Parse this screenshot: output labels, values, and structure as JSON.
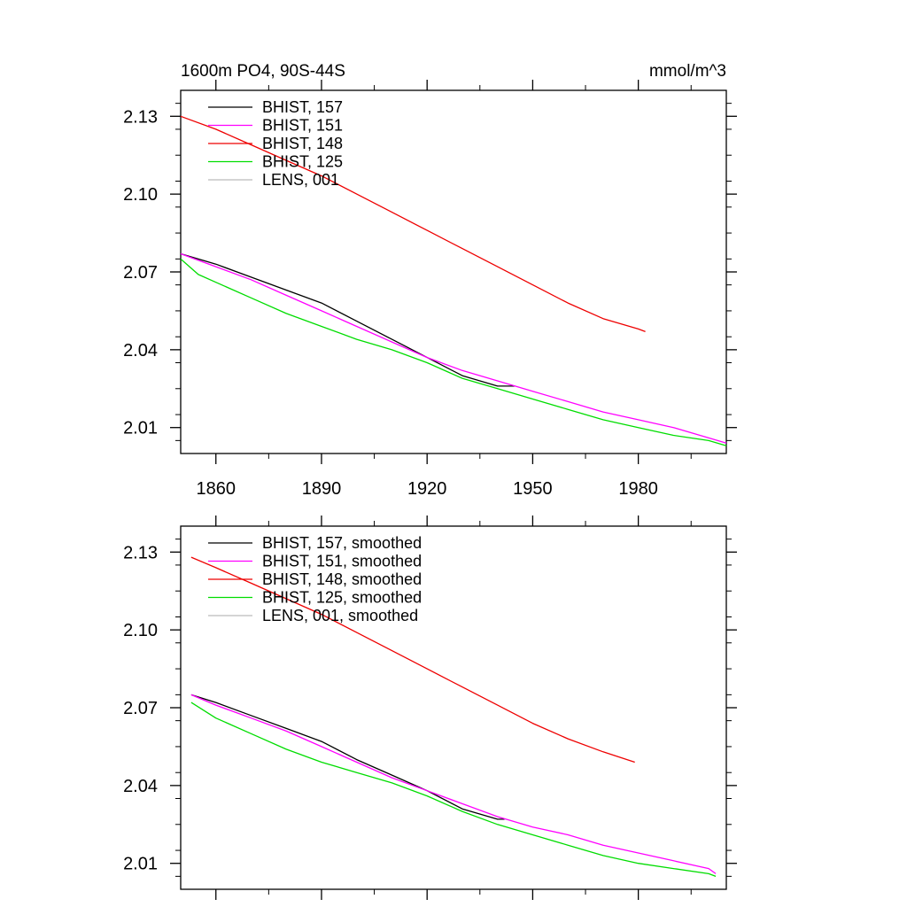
{
  "colors": {
    "black": "#000000",
    "magenta": "#ff00ff",
    "red": "#ee0000",
    "green": "#00dd00",
    "gray": "#bbbbbb"
  },
  "chart_data": [
    {
      "type": "line",
      "title": "1600m PO4, 90S-44S",
      "units": "mmol/m^3",
      "xlim": [
        1850,
        2005
      ],
      "ylim": [
        2.0,
        2.14
      ],
      "x_ticks": [
        "1860",
        "1890",
        "1920",
        "1950",
        "1980"
      ],
      "y_ticks": [
        "2.13",
        "2.10",
        "2.07",
        "2.04",
        "2.01"
      ],
      "legend_position": "top-left",
      "series": [
        {
          "name": "BHIST, 157",
          "color": "#000000",
          "x": [
            1850,
            1860,
            1870,
            1880,
            1890,
            1900,
            1910,
            1920,
            1930,
            1940,
            1945
          ],
          "y": [
            2.077,
            2.073,
            2.068,
            2.063,
            2.058,
            2.051,
            2.044,
            2.037,
            2.03,
            2.026,
            2.026
          ]
        },
        {
          "name": "BHIST, 151",
          "color": "#ff00ff",
          "x": [
            1850,
            1860,
            1870,
            1880,
            1890,
            1900,
            1910,
            1920,
            1930,
            1940,
            1950,
            1960,
            1970,
            1980,
            1990,
            2000,
            2005
          ],
          "y": [
            2.077,
            2.072,
            2.067,
            2.061,
            2.055,
            2.049,
            2.043,
            2.037,
            2.032,
            2.028,
            2.024,
            2.02,
            2.016,
            2.013,
            2.01,
            2.006,
            2.004
          ]
        },
        {
          "name": "BHIST, 148",
          "color": "#ee0000",
          "x": [
            1850,
            1860,
            1870,
            1880,
            1890,
            1900,
            1910,
            1920,
            1930,
            1940,
            1950,
            1960,
            1970,
            1980,
            1982
          ],
          "y": [
            2.13,
            2.125,
            2.119,
            2.113,
            2.107,
            2.1,
            2.093,
            2.086,
            2.079,
            2.072,
            2.065,
            2.058,
            2.052,
            2.048,
            2.047
          ]
        },
        {
          "name": "BHIST, 125",
          "color": "#00dd00",
          "x": [
            1850,
            1855,
            1860,
            1870,
            1880,
            1890,
            1900,
            1910,
            1920,
            1930,
            1940,
            1950,
            1960,
            1970,
            1980,
            1990,
            2000,
            2005
          ],
          "y": [
            2.075,
            2.069,
            2.066,
            2.06,
            2.054,
            2.049,
            2.044,
            2.04,
            2.035,
            2.029,
            2.025,
            2.021,
            2.017,
            2.013,
            2.01,
            2.007,
            2.005,
            2.003
          ]
        },
        {
          "name": "LENS, 001",
          "color": "#bbbbbb",
          "x": [],
          "y": []
        }
      ]
    },
    {
      "type": "line",
      "title": "",
      "units": "",
      "xlim": [
        1850,
        2005
      ],
      "ylim": [
        2.0,
        2.14
      ],
      "x_ticks": [],
      "y_ticks": [
        "2.13",
        "2.10",
        "2.07",
        "2.04",
        "2.01"
      ],
      "legend_position": "top-left",
      "series": [
        {
          "name": "BHIST, 157, smoothed",
          "color": "#000000",
          "x": [
            1853,
            1860,
            1870,
            1880,
            1890,
            1900,
            1910,
            1920,
            1930,
            1940,
            1942
          ],
          "y": [
            2.075,
            2.072,
            2.067,
            2.062,
            2.057,
            2.05,
            2.044,
            2.038,
            2.031,
            2.027,
            2.027
          ]
        },
        {
          "name": "BHIST, 151, smoothed",
          "color": "#ff00ff",
          "x": [
            1853,
            1860,
            1870,
            1880,
            1890,
            1900,
            1910,
            1920,
            1930,
            1940,
            1950,
            1960,
            1970,
            1980,
            1990,
            2000,
            2002
          ],
          "y": [
            2.075,
            2.071,
            2.066,
            2.061,
            2.055,
            2.049,
            2.043,
            2.038,
            2.033,
            2.028,
            2.024,
            2.021,
            2.017,
            2.014,
            2.011,
            2.008,
            2.006
          ]
        },
        {
          "name": "BHIST, 148, smoothed",
          "color": "#ee0000",
          "x": [
            1853,
            1860,
            1870,
            1880,
            1890,
            1900,
            1910,
            1920,
            1930,
            1940,
            1950,
            1960,
            1970,
            1979
          ],
          "y": [
            2.128,
            2.124,
            2.118,
            2.112,
            2.106,
            2.099,
            2.092,
            2.085,
            2.078,
            2.071,
            2.064,
            2.058,
            2.053,
            2.049
          ]
        },
        {
          "name": "BHIST, 125, smoothed",
          "color": "#00dd00",
          "x": [
            1853,
            1860,
            1870,
            1880,
            1890,
            1900,
            1910,
            1920,
            1930,
            1940,
            1950,
            1960,
            1970,
            1980,
            1990,
            2000,
            2002
          ],
          "y": [
            2.072,
            2.066,
            2.06,
            2.054,
            2.049,
            2.045,
            2.041,
            2.036,
            2.03,
            2.025,
            2.021,
            2.017,
            2.013,
            2.01,
            2.008,
            2.006,
            2.005
          ]
        },
        {
          "name": "LENS, 001, smoothed",
          "color": "#bbbbbb",
          "x": [],
          "y": []
        }
      ]
    }
  ]
}
